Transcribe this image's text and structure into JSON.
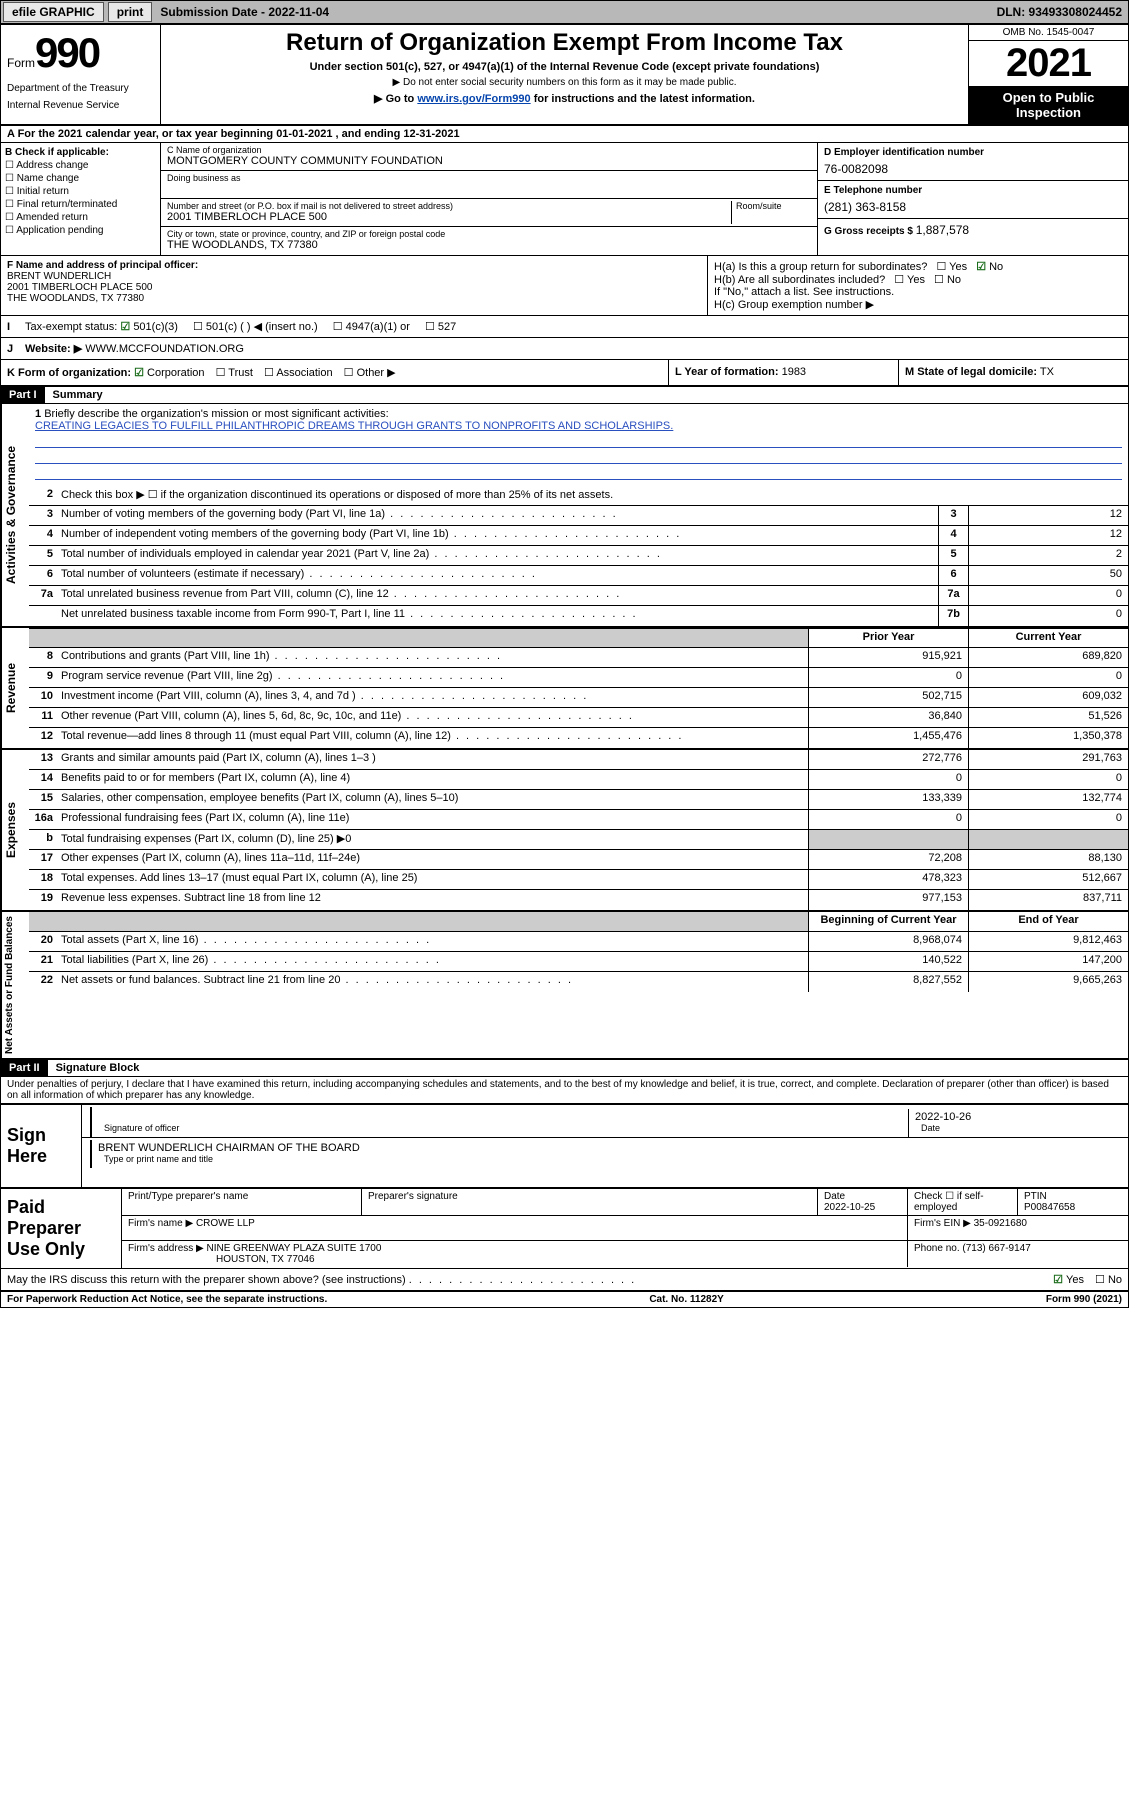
{
  "topbar": {
    "efile": "efile GRAPHIC",
    "print": "print",
    "submission_label": "Submission Date - 2022-11-04",
    "dln": "DLN: 93493308024452"
  },
  "header": {
    "form_word": "Form",
    "form_num": "990",
    "dept": "Department of the Treasury",
    "irs": "Internal Revenue Service",
    "title": "Return of Organization Exempt From Income Tax",
    "sub1": "Under section 501(c), 527, or 4947(a)(1) of the Internal Revenue Code (except private foundations)",
    "sub2": "▶ Do not enter social security numbers on this form as it may be made public.",
    "sub3_pre": "▶ Go to ",
    "sub3_link": "www.irs.gov/Form990",
    "sub3_post": " for instructions and the latest information.",
    "omb": "OMB No. 1545-0047",
    "year": "2021",
    "open_pub": "Open to Public Inspection"
  },
  "row_a": "A For the 2021 calendar year, or tax year beginning 01-01-2021  , and ending 12-31-2021",
  "colB": {
    "title": "B Check if applicable:",
    "opts": [
      "Address change",
      "Name change",
      "Initial return",
      "Final return/terminated",
      "Amended return",
      "Application pending"
    ]
  },
  "colC": {
    "name_lab": "C Name of organization",
    "name": "MONTGOMERY COUNTY COMMUNITY FOUNDATION",
    "dba_lab": "Doing business as",
    "dba": "",
    "street_lab": "Number and street (or P.O. box if mail is not delivered to street address)",
    "room_lab": "Room/suite",
    "street": "2001 TIMBERLOCH PLACE 500",
    "city_lab": "City or town, state or province, country, and ZIP or foreign postal code",
    "city": "THE WOODLANDS, TX  77380"
  },
  "colDE": {
    "d_lab": "D Employer identification number",
    "d_val": "76-0082098",
    "e_lab": "E Telephone number",
    "e_val": "(281) 363-8158",
    "g_lab": "G Gross receipts $",
    "g_val": "1,887,578"
  },
  "f": {
    "lab": "F Name and address of principal officer:",
    "name": "BRENT WUNDERLICH",
    "addr1": "2001 TIMBERLOCH PLACE 500",
    "addr2": "THE WOODLANDS, TX  77380"
  },
  "h": {
    "a": "H(a)  Is this a group return for subordinates?",
    "a_yes": "Yes",
    "a_no": "No",
    "b": "H(b)  Are all subordinates included?",
    "b_yes": "Yes",
    "b_no": "No",
    "b_note": "If \"No,\" attach a list. See instructions.",
    "c": "H(c)  Group exemption number ▶"
  },
  "i": {
    "lab": "Tax-exempt status:",
    "o1": "501(c)(3)",
    "o2": "501(c) (  ) ◀ (insert no.)",
    "o3": "4947(a)(1) or",
    "o4": "527"
  },
  "j": {
    "lab": "Website: ▶",
    "val": "WWW.MCCFOUNDATION.ORG"
  },
  "k": "K Form of organization:",
  "k_opts": {
    "corp": "Corporation",
    "trust": "Trust",
    "assoc": "Association",
    "other": "Other ▶"
  },
  "l": {
    "lab": "L Year of formation:",
    "val": "1983"
  },
  "m": {
    "lab": "M State of legal domicile:",
    "val": "TX"
  },
  "part1": {
    "hdr": "Part I",
    "title": "Summary"
  },
  "summary": {
    "sec_ag": "Activities & Governance",
    "sec_rev": "Revenue",
    "sec_exp": "Expenses",
    "sec_net": "Net Assets or Fund Balances",
    "l1_lab": "Briefly describe the organization's mission or most significant activities:",
    "l1_val": "CREATING LEGACIES TO FULFILL PHILANTHROPIC DREAMS THROUGH GRANTS TO NONPROFITS AND SCHOLARSHIPS.",
    "l2": "Check this box ▶ ☐  if the organization discontinued its operations or disposed of more than 25% of its net assets.",
    "lines_ag": [
      {
        "n": "3",
        "d": "Number of voting members of the governing body (Part VI, line 1a)",
        "box": "3",
        "v": "12"
      },
      {
        "n": "4",
        "d": "Number of independent voting members of the governing body (Part VI, line 1b)",
        "box": "4",
        "v": "12"
      },
      {
        "n": "5",
        "d": "Total number of individuals employed in calendar year 2021 (Part V, line 2a)",
        "box": "5",
        "v": "2"
      },
      {
        "n": "6",
        "d": "Total number of volunteers (estimate if necessary)",
        "box": "6",
        "v": "50"
      },
      {
        "n": "7a",
        "d": "Total unrelated business revenue from Part VIII, column (C), line 12",
        "box": "7a",
        "v": "0"
      },
      {
        "n": "",
        "d": "Net unrelated business taxable income from Form 990-T, Part I, line 11",
        "box": "7b",
        "v": "0"
      }
    ],
    "col_prior": "Prior Year",
    "col_curr": "Current Year",
    "lines_rev": [
      {
        "n": "8",
        "d": "Contributions and grants (Part VIII, line 1h)",
        "p": "915,921",
        "c": "689,820"
      },
      {
        "n": "9",
        "d": "Program service revenue (Part VIII, line 2g)",
        "p": "0",
        "c": "0"
      },
      {
        "n": "10",
        "d": "Investment income (Part VIII, column (A), lines 3, 4, and 7d )",
        "p": "502,715",
        "c": "609,032"
      },
      {
        "n": "11",
        "d": "Other revenue (Part VIII, column (A), lines 5, 6d, 8c, 9c, 10c, and 11e)",
        "p": "36,840",
        "c": "51,526"
      },
      {
        "n": "12",
        "d": "Total revenue—add lines 8 through 11 (must equal Part VIII, column (A), line 12)",
        "p": "1,455,476",
        "c": "1,350,378"
      }
    ],
    "lines_exp": [
      {
        "n": "13",
        "d": "Grants and similar amounts paid (Part IX, column (A), lines 1–3 )",
        "p": "272,776",
        "c": "291,763"
      },
      {
        "n": "14",
        "d": "Benefits paid to or for members (Part IX, column (A), line 4)",
        "p": "0",
        "c": "0"
      },
      {
        "n": "15",
        "d": "Salaries, other compensation, employee benefits (Part IX, column (A), lines 5–10)",
        "p": "133,339",
        "c": "132,774"
      },
      {
        "n": "16a",
        "d": "Professional fundraising fees (Part IX, column (A), line 11e)",
        "p": "0",
        "c": "0"
      },
      {
        "n": "b",
        "d": "Total fundraising expenses (Part IX, column (D), line 25) ▶0",
        "p": "",
        "c": "",
        "shade": true
      },
      {
        "n": "17",
        "d": "Other expenses (Part IX, column (A), lines 11a–11d, 11f–24e)",
        "p": "72,208",
        "c": "88,130"
      },
      {
        "n": "18",
        "d": "Total expenses. Add lines 13–17 (must equal Part IX, column (A), line 25)",
        "p": "478,323",
        "c": "512,667"
      },
      {
        "n": "19",
        "d": "Revenue less expenses. Subtract line 18 from line 12",
        "p": "977,153",
        "c": "837,711"
      }
    ],
    "col_beg": "Beginning of Current Year",
    "col_end": "End of Year",
    "lines_net": [
      {
        "n": "20",
        "d": "Total assets (Part X, line 16)",
        "p": "8,968,074",
        "c": "9,812,463"
      },
      {
        "n": "21",
        "d": "Total liabilities (Part X, line 26)",
        "p": "140,522",
        "c": "147,200"
      },
      {
        "n": "22",
        "d": "Net assets or fund balances. Subtract line 21 from line 20",
        "p": "8,827,552",
        "c": "9,665,263"
      }
    ]
  },
  "part2": {
    "hdr": "Part II",
    "title": "Signature Block"
  },
  "sig": {
    "penalty": "Under penalties of perjury, I declare that I have examined this return, including accompanying schedules and statements, and to the best of my knowledge and belief, it is true, correct, and complete. Declaration of preparer (other than officer) is based on all information of which preparer has any knowledge.",
    "sign_here": "Sign Here",
    "sig_lab": "Signature of officer",
    "date_lab": "Date",
    "date_val": "2022-10-26",
    "name_val": "BRENT WUNDERLICH  CHAIRMAN OF THE BOARD",
    "name_lab": "Type or print name and title"
  },
  "prep": {
    "label": "Paid Preparer Use Only",
    "h_name": "Print/Type preparer's name",
    "h_sig": "Preparer's signature",
    "h_date": "Date",
    "date": "2022-10-25",
    "h_check": "Check ☐ if self-employed",
    "h_ptin": "PTIN",
    "ptin": "P00847658",
    "firm_lab": "Firm's name    ▶",
    "firm": "CROWE LLP",
    "ein_lab": "Firm's EIN ▶",
    "ein": "35-0921680",
    "addr_lab": "Firm's address ▶",
    "addr1": "NINE GREENWAY PLAZA SUITE 1700",
    "addr2": "HOUSTON, TX  77046",
    "phone_lab": "Phone no.",
    "phone": "(713) 667-9147"
  },
  "discuss": {
    "q": "May the IRS discuss this return with the preparer shown above? (see instructions)",
    "yes": "Yes",
    "no": "No"
  },
  "footer": {
    "left": "For Paperwork Reduction Act Notice, see the separate instructions.",
    "mid": "Cat. No. 11282Y",
    "right": "Form 990 (2021)"
  }
}
